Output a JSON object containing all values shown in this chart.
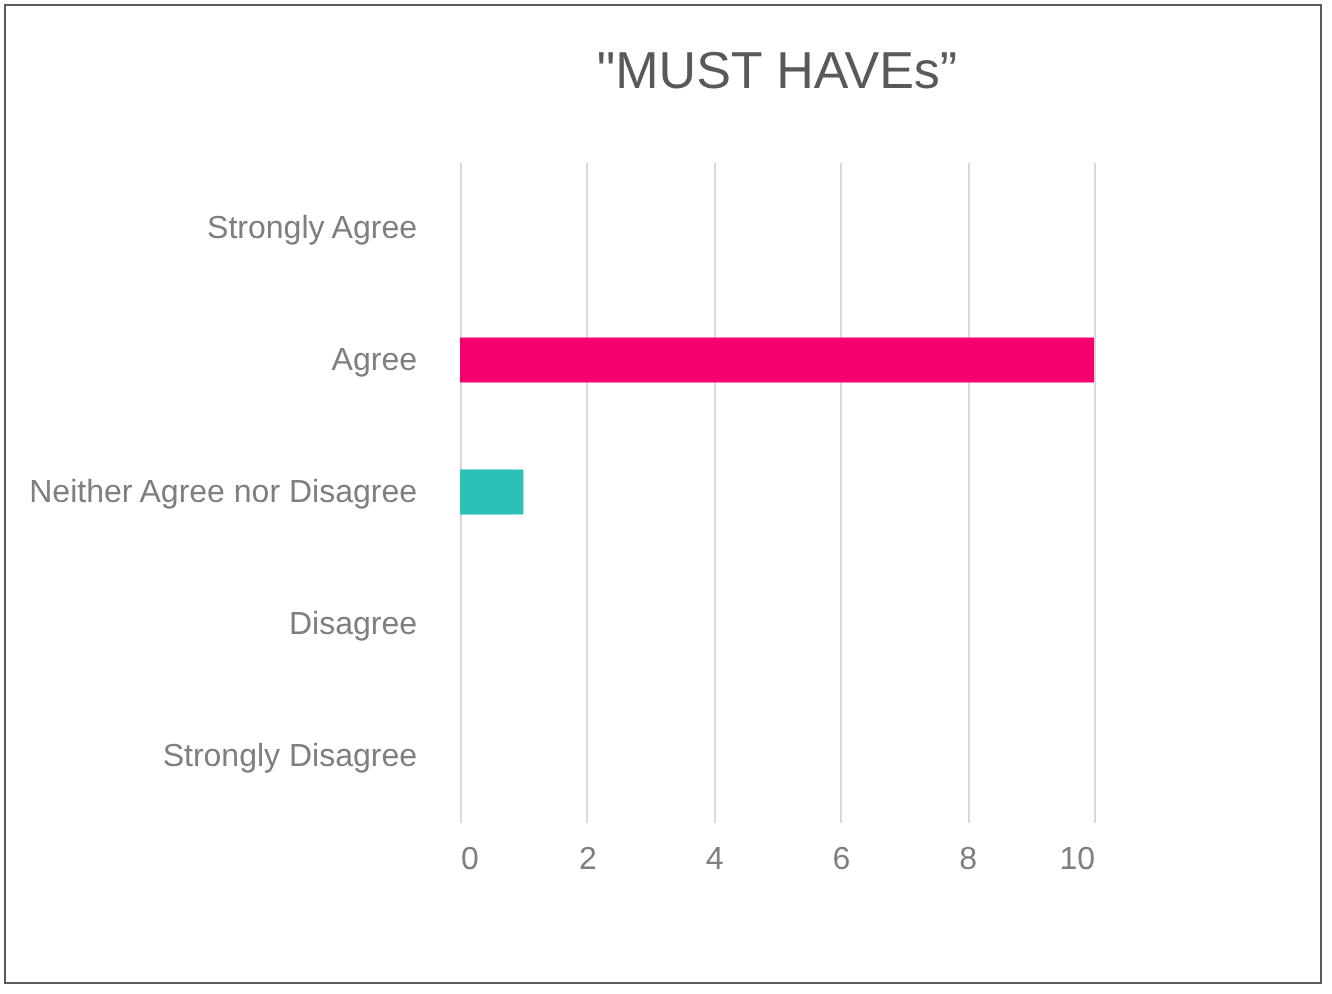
{
  "chart_data": {
    "type": "bar",
    "title": "\"MUST HAVEs”",
    "orientation": "horizontal",
    "categories": [
      "Strongly Agree",
      "Agree",
      "Neither Agree nor Disagree",
      "Disagree",
      "Strongly Disagree"
    ],
    "values": [
      0,
      10,
      1,
      0,
      0
    ],
    "colors": [
      "#f5006e",
      "#f5006e",
      "#2bbfb7",
      "#2bbfb7",
      "#2bbfb7"
    ],
    "xlim": [
      0,
      10
    ],
    "xticks": [
      0,
      2,
      4,
      6,
      8,
      10
    ],
    "grid": "x"
  }
}
